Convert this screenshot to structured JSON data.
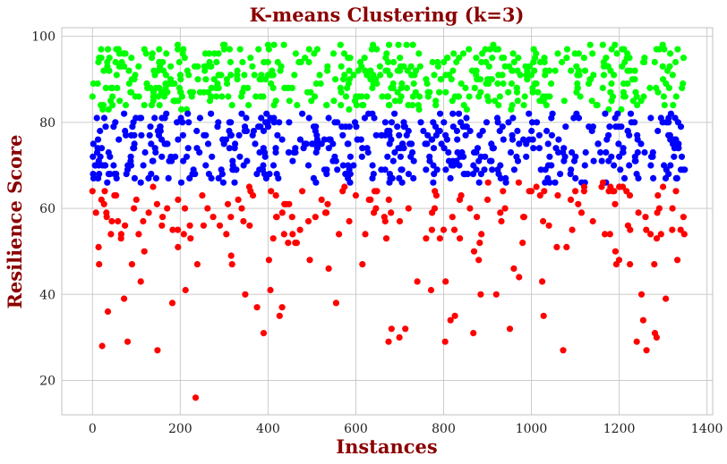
{
  "chart_data": {
    "type": "scatter",
    "title": "K-means Clustering (k=3)",
    "xlabel": "Instances",
    "ylabel": "Resilience Score",
    "xlim": [
      -70,
      1413
    ],
    "ylim": [
      12,
      102
    ],
    "xticks": [
      0,
      200,
      400,
      600,
      800,
      1000,
      1200,
      1400
    ],
    "yticks": [
      20,
      40,
      60,
      80,
      100
    ],
    "grid": true,
    "legend": "none",
    "n_instances": 1350,
    "series": [
      {
        "color": "#00ff00",
        "range": [
          83,
          98
        ],
        "x": [
          0,
          12,
          20,
          25,
          38,
          45,
          55,
          62,
          75,
          88,
          95,
          105,
          118,
          125,
          140,
          150,
          160,
          175,
          185,
          200,
          210,
          225,
          240,
          255,
          270,
          285,
          300,
          318,
          330,
          345,
          360,
          372,
          385,
          400,
          418,
          430,
          445,
          460,
          475,
          490,
          505,
          520,
          535,
          550,
          565,
          580,
          595,
          610,
          625,
          640,
          655,
          670,
          685,
          700,
          718,
          730,
          745,
          760,
          775,
          790,
          805,
          820,
          835,
          850,
          865,
          880,
          895,
          910,
          925,
          940,
          955,
          970,
          985,
          1000,
          1015,
          1030,
          1045,
          1060,
          1075,
          1090,
          1105,
          1120,
          1135,
          1150,
          1165,
          1180,
          1195,
          1210,
          1225,
          1240,
          1255,
          1270,
          1285,
          1300,
          1315,
          1330,
          1345
        ],
        "values": [
          86,
          89,
          95,
          84,
          92,
          88,
          91,
          85,
          96,
          87,
          90,
          93,
          84,
          88,
          92,
          86,
          94,
          89,
          85,
          91,
          95,
          87,
          90,
          93,
          86,
          89,
          97,
          84,
          92,
          88,
          95,
          86,
          90,
          98,
          85,
          93,
          88,
          91,
          94,
          87,
          96,
          89,
          92,
          85,
          98,
          88,
          91,
          94,
          86,
          89,
          93,
          96,
          88,
          85,
          92,
          98,
          86,
          90,
          94,
          87,
          91,
          85,
          95,
          88,
          92,
          86,
          97,
          90,
          84,
          93,
          89,
          95,
          86,
          91,
          87,
          94,
          89,
          96,
          85,
          92,
          88,
          95,
          90,
          84,
          93,
          87,
          96,
          89,
          92,
          86,
          94,
          88,
          97,
          90,
          93,
          86,
          89
        ]
      },
      {
        "color": "#0000ff",
        "range": [
          66,
          82
        ],
        "x": [
          2,
          10,
          18,
          30,
          40,
          52,
          60,
          72,
          85,
          95,
          108,
          120,
          132,
          145,
          155,
          168,
          180,
          195,
          205,
          218,
          230,
          245,
          258,
          272,
          285,
          298,
          312,
          325,
          340,
          352,
          365,
          378,
          392,
          405,
          420,
          432,
          448,
          462,
          478,
          492,
          508,
          522,
          538,
          552,
          568,
          582,
          598,
          612,
          628,
          642,
          658,
          672,
          688,
          702,
          716,
          732,
          748,
          762,
          778,
          792,
          808,
          822,
          838,
          852,
          868,
          882,
          898,
          912,
          928,
          942,
          958,
          972,
          988,
          1002,
          1018,
          1032,
          1048,
          1062,
          1078,
          1092,
          1108,
          1122,
          1138,
          1152,
          1168,
          1182,
          1198,
          1212,
          1228,
          1242,
          1258,
          1272,
          1288,
          1302,
          1318,
          1332,
          1346
        ],
        "values": [
          75,
          81,
          72,
          79,
          68,
          80,
          76,
          82,
          70,
          77,
          81,
          73,
          79,
          67,
          78,
          82,
          71,
          76,
          80,
          74,
          69,
          81,
          77,
          72,
          79,
          66,
          80,
          75,
          82,
          71,
          77,
          79,
          73,
          81,
          68,
          76,
          80,
          74,
          82,
          70,
          78,
          75,
          81,
          72,
          79,
          67,
          80,
          76,
          73,
          81,
          69,
          78,
          82,
          74,
          77,
          71,
          80,
          75,
          68,
          82,
          76,
          79,
          72,
          81,
          70,
          77,
          80,
          74,
          78,
          66,
          81,
          75,
          72,
          80,
          77,
          69,
          82,
          76,
          79,
          73,
          81,
          70,
          78,
          75,
          82,
          72,
          79,
          67,
          80,
          76,
          73,
          81,
          78,
          70,
          82,
          75,
          69
        ]
      },
      {
        "color": "#ff0000",
        "range": [
          16,
          66
        ],
        "x": [
          0,
          8,
          15,
          22,
          28,
          35,
          42,
          50,
          58,
          65,
          72,
          80,
          90,
          100,
          110,
          118,
          128,
          138,
          148,
          158,
          170,
          182,
          195,
          208,
          222,
          235,
          250,
          262,
          275,
          290,
          305,
          318,
          332,
          348,
          360,
          375,
          390,
          402,
          418,
          432,
          448,
          462,
          478,
          492,
          508,
          522,
          538,
          555,
          570,
          585,
          600,
          615,
          630,
          648,
          665,
          680,
          700,
          720,
          740,
          760,
          780,
          800,
          820,
          840,
          860,
          880,
          900,
          920,
          940,
          960,
          980,
          1000,
          1020,
          1040,
          1060,
          1080,
          1100,
          1120,
          1140,
          1160,
          1180,
          1200,
          1220,
          1240,
          1260,
          1280,
          1300,
          1340
        ],
        "values": [
          64,
          59,
          47,
          28,
          64,
          36,
          54,
          63,
          57,
          53,
          39,
          29,
          47,
          62,
          43,
          50,
          59,
          65,
          27,
          56,
          60,
          38,
          62,
          54,
          56,
          16,
          63,
          60,
          58,
          56,
          54,
          47,
          62,
          40,
          64,
          37,
          31,
          48,
          63,
          37,
          61,
          52,
          64,
          57,
          58,
          62,
          46,
          38,
          64,
          57,
          63,
          47,
          62,
          64,
          58,
          59,
          57,
          60,
          43,
          53,
          64,
          55,
          58,
          63,
          60,
          48,
          62,
          40,
          60,
          46,
          52,
          64,
          63,
          56,
          63,
          51,
          64,
          64,
          57,
          65,
          65,
          65,
          56,
          29,
          58,
          47,
          65,
          55
        ]
      }
    ]
  }
}
